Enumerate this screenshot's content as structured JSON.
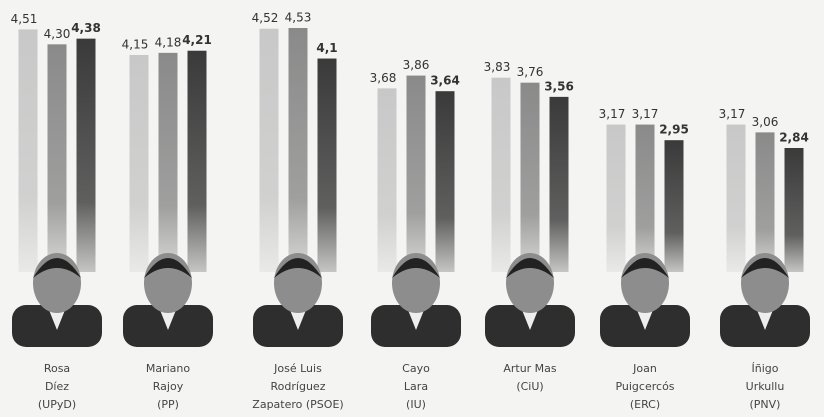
{
  "chart_data": {
    "type": "bar",
    "categories": [
      [
        "Rosa",
        "Díez",
        "(UPyD)"
      ],
      [
        "Mariano",
        "Rajoy",
        "(PP)"
      ],
      [
        "José Luis",
        "Rodríguez",
        "Zapatero (PSOE)"
      ],
      [
        "Cayo",
        "Lara",
        "(IU)"
      ],
      [
        "Artur Mas",
        "(CiU)"
      ],
      [
        "Joan",
        "Puigcercós",
        "(ERC)"
      ],
      [
        "Íñigo",
        "Urkullu",
        "(PNV)"
      ]
    ],
    "series": [
      {
        "color": "#c8c8c8",
        "values": [
          4.51,
          4.15,
          4.52,
          3.68,
          3.83,
          3.17,
          3.17
        ],
        "value_labels": [
          "4,51",
          "4,15",
          "4,52",
          "3,68",
          "3,83",
          "3,17",
          "3,17"
        ]
      },
      {
        "color": "#8a8a8a",
        "values": [
          4.3,
          4.18,
          4.53,
          3.86,
          3.76,
          3.17,
          3.06
        ],
        "value_labels": [
          "4,30",
          "4,18",
          "4,53",
          "3,86",
          "3,76",
          "3,17",
          "3,06"
        ]
      },
      {
        "color": "#3a3a3a",
        "values": [
          4.38,
          4.21,
          4.1,
          3.64,
          3.56,
          2.95,
          2.84
        ],
        "value_labels": [
          "4,38",
          "4,21",
          "4,1",
          "3,64",
          "3,56",
          "2,95",
          "2,84"
        ]
      }
    ]
  }
}
